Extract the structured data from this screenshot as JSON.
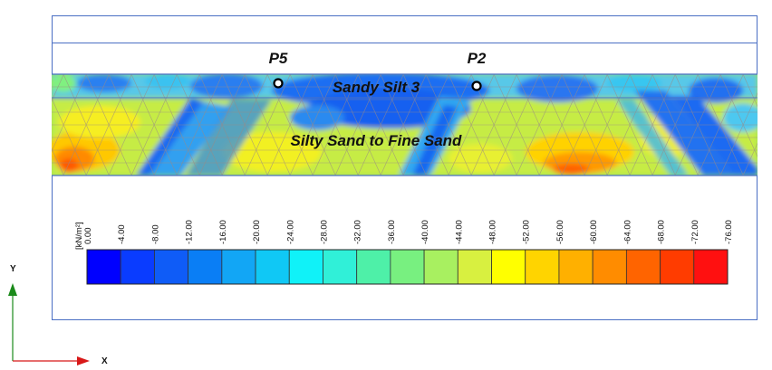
{
  "model": {
    "points": [
      {
        "name": "P5",
        "label": "P5"
      },
      {
        "name": "P2",
        "label": "P2"
      }
    ],
    "layers": [
      {
        "name": "sandy-silt",
        "label": "Sandy Silt 3"
      },
      {
        "name": "silty-sand",
        "label": "Silty Sand to Fine Sand"
      }
    ]
  },
  "legend": {
    "unit": "[kN/m²]",
    "ticks": [
      "0.00",
      "-4.00",
      "-8.00",
      "-12.00",
      "-16.00",
      "-20.00",
      "-24.00",
      "-28.00",
      "-32.00",
      "-36.00",
      "-40.00",
      "-44.00",
      "-48.00",
      "-52.00",
      "-56.00",
      "-60.00",
      "-64.00",
      "-68.00",
      "-72.00",
      "-76.00"
    ],
    "colors": [
      "#0000ff",
      "#0a3cff",
      "#0f5cf7",
      "#0a7ef5",
      "#12a6f5",
      "#10c8f5",
      "#10f2f8",
      "#30f0d8",
      "#4ef0a8",
      "#78f080",
      "#a8f060",
      "#d8f040",
      "#ffff00",
      "#ffd400",
      "#ffb000",
      "#ff8c00",
      "#ff6400",
      "#ff3c00",
      "#ff1010"
    ]
  },
  "axes": {
    "y_label": "Y",
    "x_label": "X"
  }
}
